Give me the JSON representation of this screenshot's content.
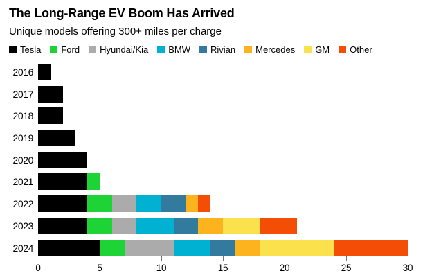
{
  "page": {
    "title": "The Long-Range EV Boom Has Arrived",
    "subtitle": "Unique models offering 300+ miles per charge"
  },
  "chart_data": {
    "type": "bar",
    "orientation": "horizontal",
    "stacked": true,
    "title": "The Long-Range EV Boom Has Arrived",
    "subtitle": "Unique models offering 300+ miles per charge",
    "categories": [
      "2016",
      "2017",
      "2018",
      "2019",
      "2020",
      "2021",
      "2022",
      "2023",
      "2024"
    ],
    "series": [
      {
        "name": "Tesla",
        "color": "#000000",
        "values": [
          1,
          2,
          2,
          3,
          4,
          4,
          4,
          4,
          5
        ]
      },
      {
        "name": "Ford",
        "color": "#1dd335",
        "values": [
          0,
          0,
          0,
          0,
          0,
          1,
          2,
          2,
          2
        ]
      },
      {
        "name": "Hyundai/Kia",
        "color": "#ababab",
        "values": [
          0,
          0,
          0,
          0,
          0,
          0,
          2,
          2,
          4
        ]
      },
      {
        "name": "BMW",
        "color": "#00b1d2",
        "values": [
          0,
          0,
          0,
          0,
          0,
          0,
          2,
          3,
          3
        ]
      },
      {
        "name": "Rivian",
        "color": "#327a9e",
        "values": [
          0,
          0,
          0,
          0,
          0,
          0,
          2,
          2,
          2
        ]
      },
      {
        "name": "Mercedes",
        "color": "#fcb31d",
        "values": [
          0,
          0,
          0,
          0,
          0,
          0,
          1,
          2,
          2
        ]
      },
      {
        "name": "GM",
        "color": "#fbe14b",
        "values": [
          0,
          0,
          0,
          0,
          0,
          0,
          0,
          3,
          6
        ]
      },
      {
        "name": "Other",
        "color": "#f44d05",
        "values": [
          0,
          0,
          0,
          0,
          0,
          0,
          1,
          3,
          6
        ]
      }
    ],
    "totals": [
      1,
      2,
      2,
      3,
      4,
      5,
      14,
      21,
      30
    ],
    "x_ticks": [
      0,
      5,
      10,
      15,
      20,
      25,
      30
    ],
    "xlim": [
      0,
      30
    ],
    "xlabel": "",
    "ylabel": "",
    "grid": false,
    "legend_position": "top",
    "tick_color": "#757575",
    "background": "#ffffff"
  }
}
